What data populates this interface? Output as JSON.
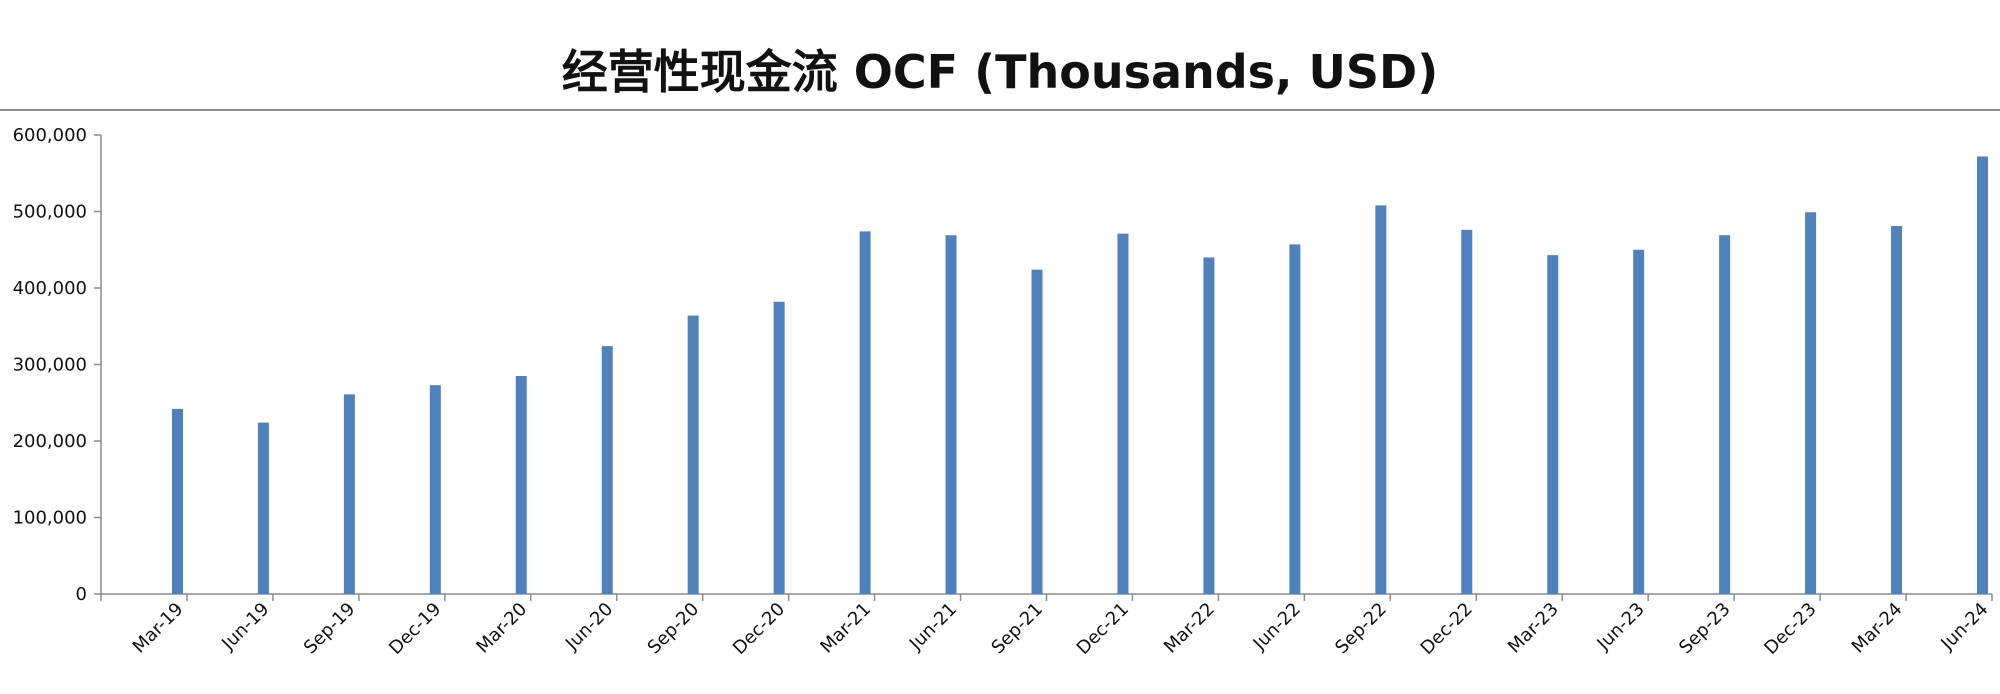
{
  "chart_data": {
    "type": "bar",
    "title": "经营性现金流 OCF (Thousands, USD)",
    "xlabel": "",
    "ylabel": "",
    "categories": [
      "Mar-19",
      "Jun-19",
      "Sep-19",
      "Dec-19",
      "Mar-20",
      "Jun-20",
      "Sep-20",
      "Dec-20",
      "Mar-21",
      "Jun-21",
      "Sep-21",
      "Dec-21",
      "Mar-22",
      "Jun-22",
      "Sep-22",
      "Dec-22",
      "Mar-23",
      "Jun-23",
      "Sep-23",
      "Dec-23",
      "Mar-24",
      "Jun-24"
    ],
    "series": [
      {
        "values": [
          242000,
          224000,
          261000,
          273000,
          285000,
          324000,
          364000,
          382000,
          474000,
          469000,
          424000,
          471000,
          440000,
          457000,
          508000,
          476000,
          443000,
          450000,
          469000,
          499000,
          481000,
          572000
        ]
      }
    ],
    "ylim": [
      0,
      600000
    ],
    "yticks": [
      0,
      100000,
      200000,
      300000,
      400000,
      500000,
      600000
    ],
    "ytick_labels": [
      "0",
      "100,000",
      "200,000",
      "300,000",
      "400,000",
      "500,000",
      "600,000"
    ],
    "grid": false,
    "legend": "none",
    "bar_color": "#4f81bd",
    "axis_color": "#8c8c8c"
  }
}
